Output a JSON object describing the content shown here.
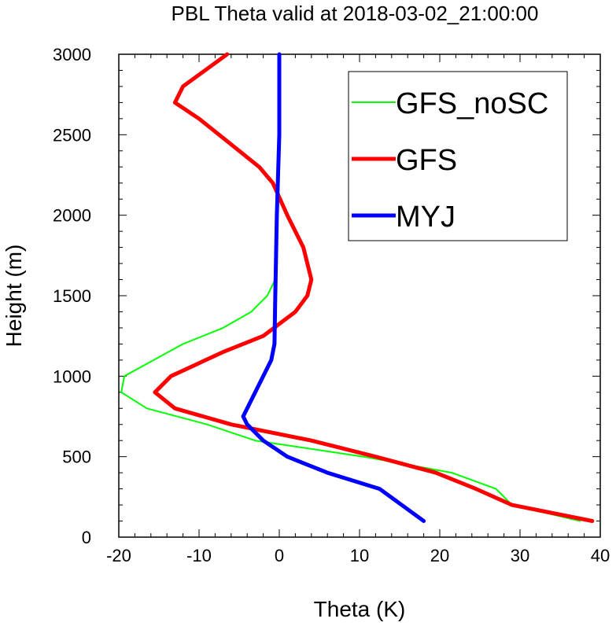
{
  "chart_data": {
    "type": "line",
    "title": "PBL Theta valid at 2018-03-02_21:00:00",
    "xlabel": "Theta (K)",
    "ylabel": "Height (m)",
    "xlim": [
      -20,
      40
    ],
    "ylim": [
      0,
      3000
    ],
    "xticks": [
      -20,
      -10,
      0,
      10,
      20,
      30,
      40
    ],
    "yticks": [
      0,
      500,
      1000,
      1500,
      2000,
      2500,
      3000
    ],
    "xtick_labels": [
      "-20",
      "-10",
      "0",
      "10",
      "20",
      "30",
      "40"
    ],
    "ytick_labels": [
      "0",
      "500",
      "1000",
      "1500",
      "2000",
      "2500",
      "3000"
    ],
    "grid": false,
    "legend": "top-right",
    "series": [
      {
        "name": "GFS_noSC",
        "color": "#00ff00",
        "width": 2,
        "points": [
          [
            37.5,
            100
          ],
          [
            29.0,
            200
          ],
          [
            27.0,
            300
          ],
          [
            21.5,
            400
          ],
          [
            10.5,
            500
          ],
          [
            -3.0,
            600
          ],
          [
            -9.0,
            700
          ],
          [
            -16.5,
            800
          ],
          [
            -19.7,
            900
          ],
          [
            -19.3,
            1000
          ],
          [
            -12.0,
            1200
          ],
          [
            -7.0,
            1300
          ],
          [
            -3.5,
            1400
          ],
          [
            -1.5,
            1500
          ],
          [
            -0.5,
            1600
          ],
          [
            -0.3,
            1800
          ],
          [
            -0.3,
            2000
          ],
          [
            0.0,
            2500
          ],
          [
            0.0,
            3000
          ]
        ]
      },
      {
        "name": "GFS",
        "color": "#ff0000",
        "width": 5,
        "points": [
          [
            39.0,
            100
          ],
          [
            29.0,
            200
          ],
          [
            24.5,
            300
          ],
          [
            19.5,
            400
          ],
          [
            12.0,
            500
          ],
          [
            4.0,
            600
          ],
          [
            -6.0,
            700
          ],
          [
            -13.0,
            800
          ],
          [
            -15.5,
            900
          ],
          [
            -13.5,
            1000
          ],
          [
            -7.0,
            1150
          ],
          [
            -2.0,
            1250
          ],
          [
            2.0,
            1400
          ],
          [
            3.5,
            1500
          ],
          [
            4.0,
            1600
          ],
          [
            3.0,
            1800
          ],
          [
            1.0,
            2000
          ],
          [
            -0.8,
            2200
          ],
          [
            -2.5,
            2300
          ],
          [
            -5.0,
            2400
          ],
          [
            -10.0,
            2600
          ],
          [
            -13.0,
            2700
          ],
          [
            -12.0,
            2800
          ],
          [
            -6.5,
            3000
          ]
        ]
      },
      {
        "name": "MYJ",
        "color": "#0000ff",
        "width": 5,
        "points": [
          [
            18.0,
            100
          ],
          [
            12.5,
            300
          ],
          [
            6.0,
            400
          ],
          [
            1.0,
            500
          ],
          [
            -2.0,
            600
          ],
          [
            -4.0,
            700
          ],
          [
            -4.5,
            750
          ],
          [
            -3.5,
            850
          ],
          [
            -1.0,
            1100
          ],
          [
            -0.6,
            1200
          ],
          [
            -0.5,
            1500
          ],
          [
            -0.3,
            2000
          ],
          [
            0.0,
            2500
          ],
          [
            0.0,
            3000
          ]
        ]
      }
    ]
  }
}
